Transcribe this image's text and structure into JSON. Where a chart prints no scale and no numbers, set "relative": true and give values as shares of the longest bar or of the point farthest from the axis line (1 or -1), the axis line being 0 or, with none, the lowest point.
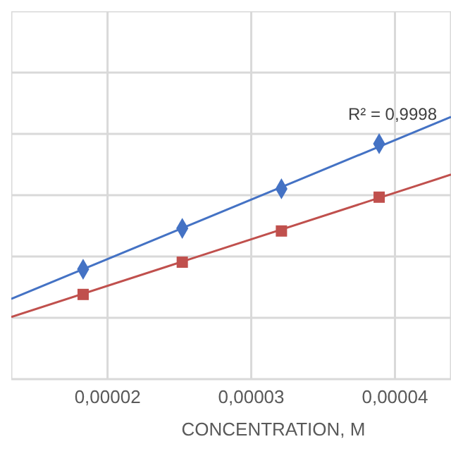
{
  "chart_data": {
    "type": "scatter",
    "xlabel": "CONCENTRATION, M",
    "relative": true,
    "grid": true,
    "xlim": [
      1.33e-05,
      4.39e-05
    ],
    "xticks": [
      {
        "value": 2e-05,
        "label": "0,00002"
      },
      {
        "value": 3e-05,
        "label": "0,00003"
      },
      {
        "value": 4e-05,
        "label": "0,00004"
      }
    ],
    "annotations": [
      "R² = 0,9998"
    ],
    "series": [
      {
        "marker": "diamond",
        "color": "#4472c4",
        "x": [
          1.83e-05,
          2.52e-05,
          3.21e-05,
          3.89e-05
        ],
        "values": [
          0.419,
          0.575,
          0.726,
          0.898
        ]
      },
      {
        "marker": "square",
        "color": "#c0504d",
        "x": [
          1.83e-05,
          2.52e-05,
          3.21e-05,
          3.89e-05
        ],
        "values": [
          0.323,
          0.446,
          0.565,
          0.694
        ]
      },
      {
        "type": "line",
        "marker": "none",
        "color": "#4472c4",
        "x": [
          1.33e-05,
          4.39e-05
        ],
        "values": [
          0.306,
          1
        ]
      },
      {
        "type": "line",
        "marker": "none",
        "color": "#c0504d",
        "x": [
          1.33e-05,
          4.39e-05
        ],
        "values": [
          0.237,
          0.78
        ]
      }
    ]
  }
}
